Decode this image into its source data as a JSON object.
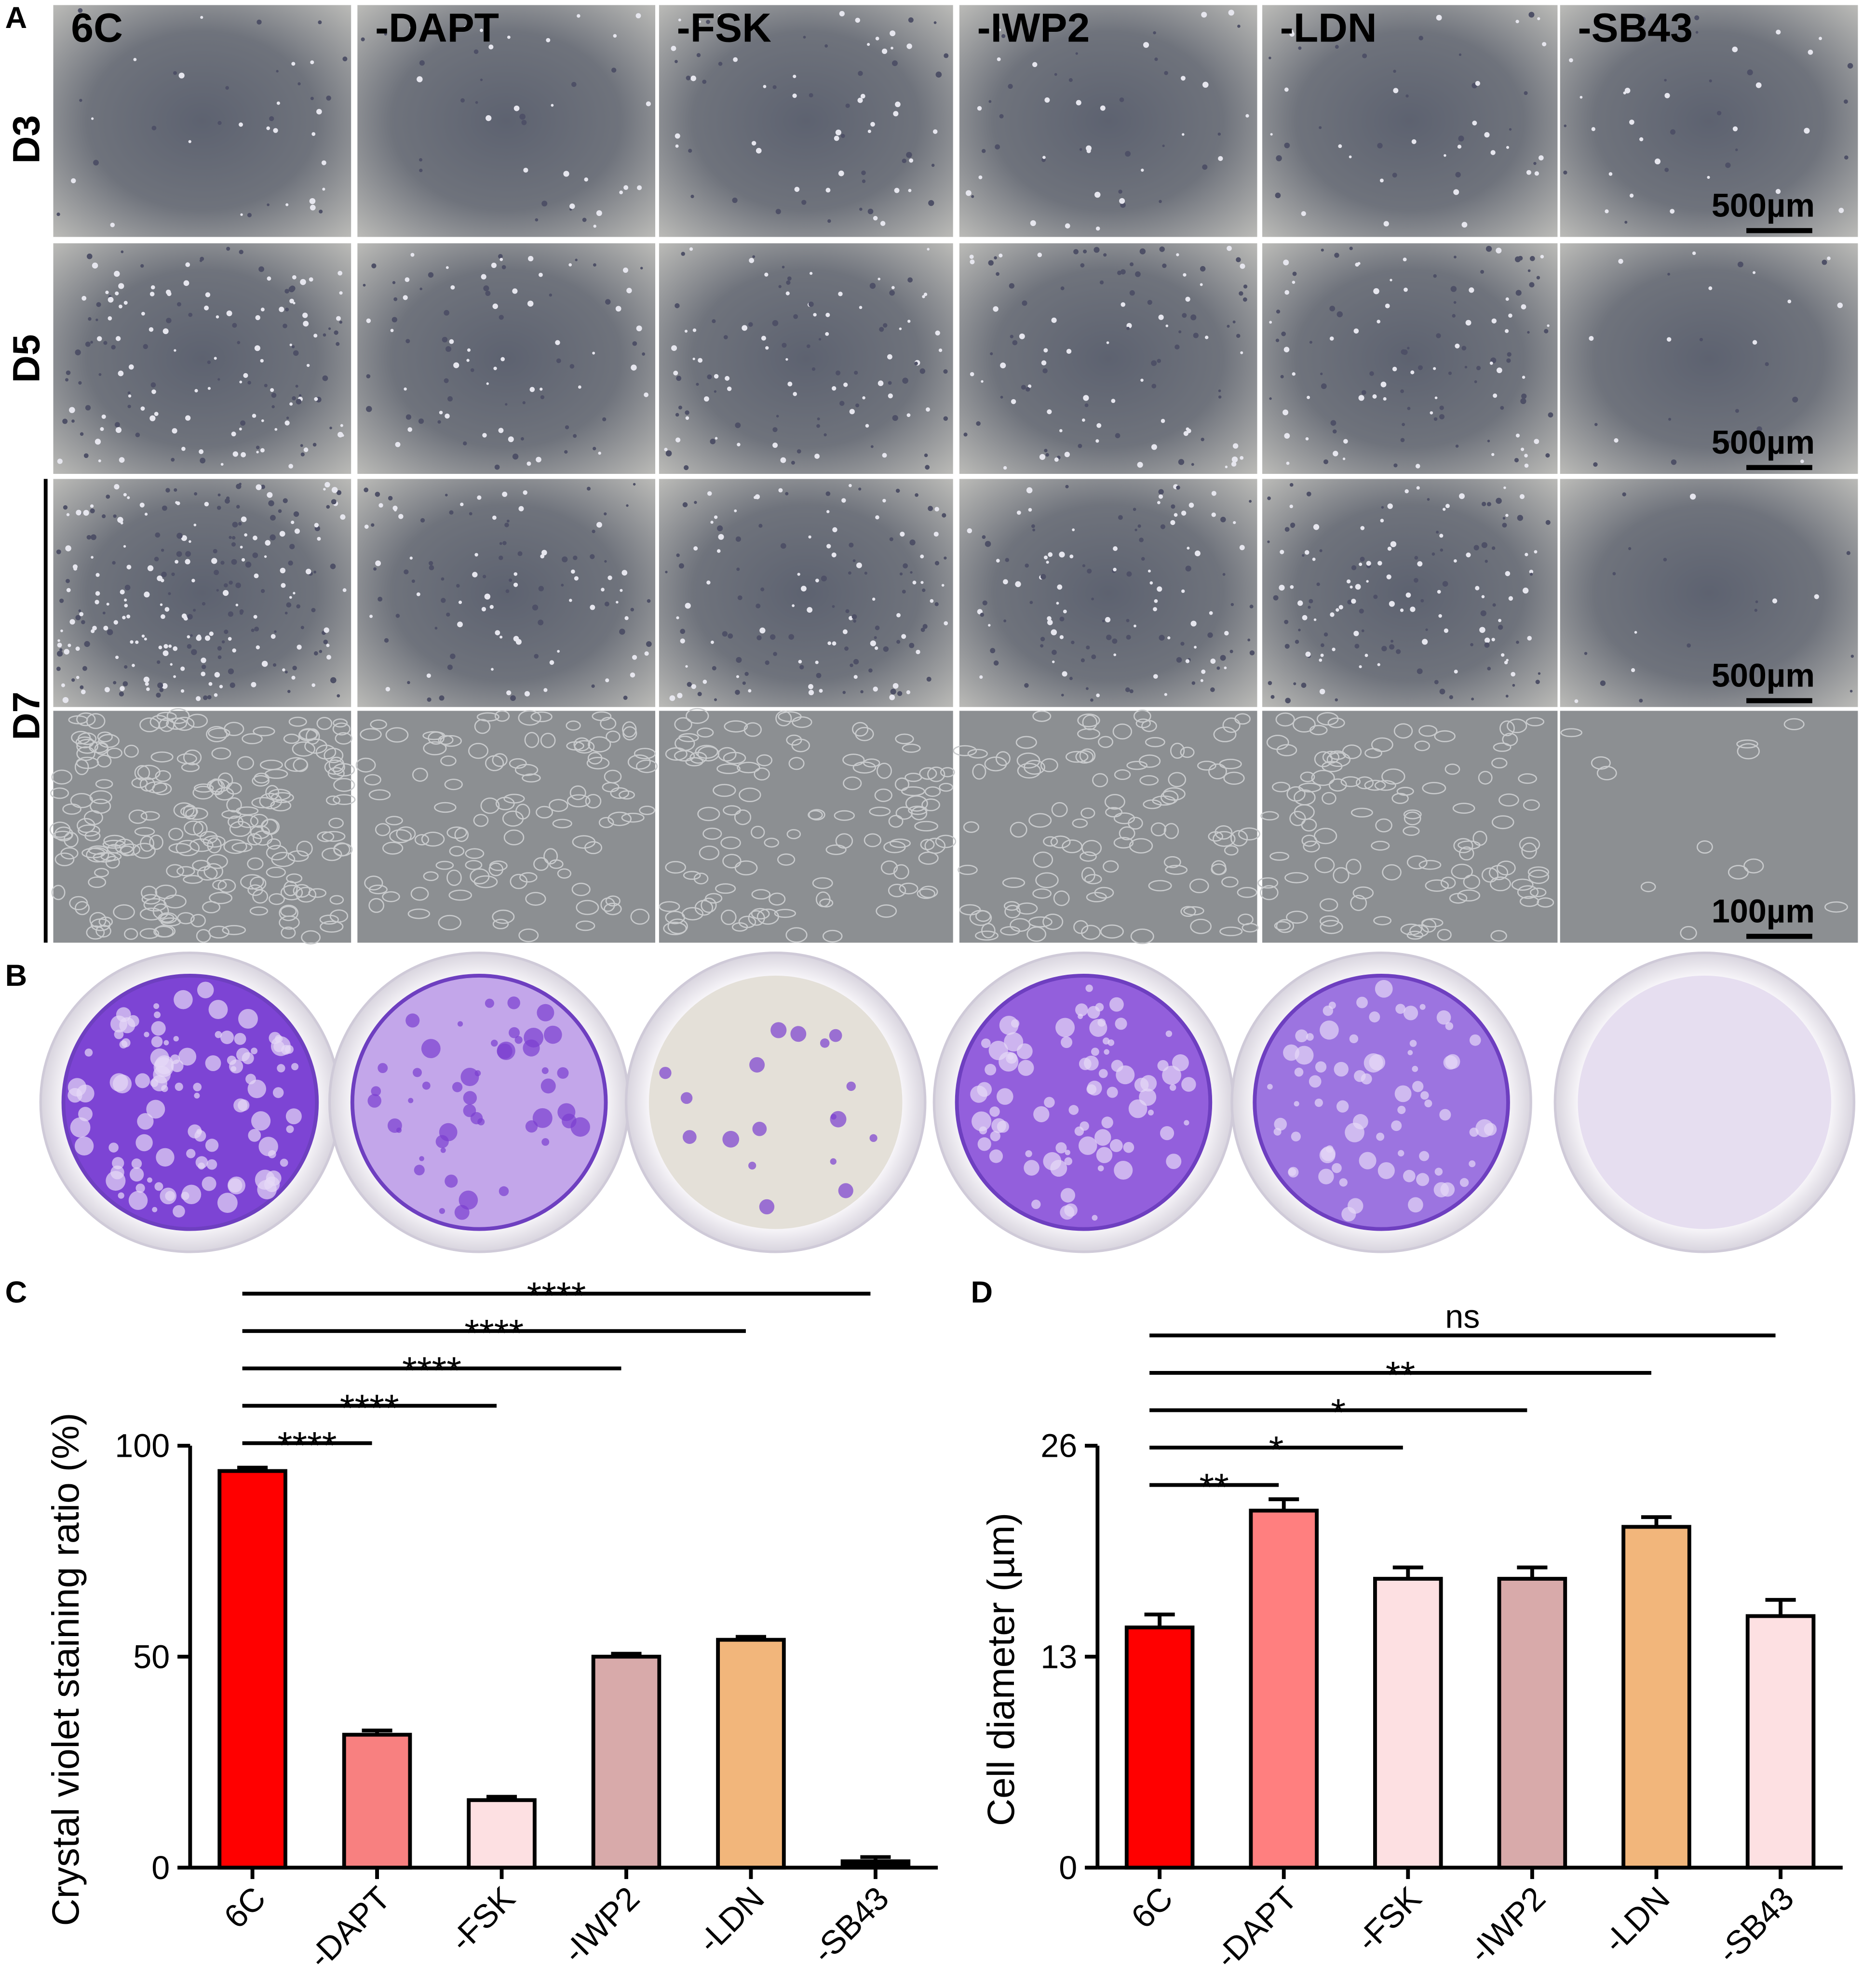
{
  "figure": {
    "panel_labels": [
      "A",
      "B",
      "C",
      "D"
    ],
    "column_labels": [
      "6C",
      "-DAPT",
      "-FSK",
      "-IWP2",
      "-LDN",
      "-SB43"
    ],
    "row_labels": [
      "D3",
      "D5",
      "D7"
    ],
    "scale_bars": [
      "500µm",
      "500µm",
      "500µm",
      "100µm"
    ]
  },
  "chart_data": [
    {
      "type": "bar",
      "ylabel": "Crystal violet staining ratio (%)",
      "categories": [
        "6C",
        "-DAPT",
        "-FSK",
        "-IWP2",
        "-LDN",
        "-SB43"
      ],
      "values": [
        94,
        31.5,
        16,
        50,
        54,
        1.5
      ],
      "errors": [
        0.8,
        1,
        0.8,
        0.7,
        0.7,
        1
      ],
      "colors": [
        "#ff0000",
        "#f88080",
        "#fde0e2",
        "#d8aaaa",
        "#f2b67b",
        "#000000"
      ],
      "ylim": [
        0,
        100
      ],
      "yticks": [
        0,
        50,
        100
      ],
      "comparisons": [
        {
          "label": "****",
          "between": [
            0,
            1
          ]
        },
        {
          "label": "****",
          "between": [
            0,
            2
          ]
        },
        {
          "label": "****",
          "between": [
            0,
            3
          ]
        },
        {
          "label": "****",
          "between": [
            0,
            4
          ]
        },
        {
          "label": "****",
          "between": [
            0,
            5
          ]
        }
      ]
    },
    {
      "type": "bar",
      "ylabel": "Cell diameter (µm)",
      "categories": [
        "6C",
        "-DAPT",
        "-FSK",
        "-IWP2",
        "-LDN",
        "-SB43"
      ],
      "values": [
        14.8,
        22,
        17.8,
        17.8,
        21,
        15.5
      ],
      "errors": [
        0.8,
        0.7,
        0.7,
        0.7,
        0.6,
        1
      ],
      "colors": [
        "#ff0000",
        "#ff7f7f",
        "#fde0e2",
        "#d8aaaa",
        "#f2b67b",
        "#fde0e2"
      ],
      "ylim": [
        0,
        26
      ],
      "yticks": [
        0,
        13,
        26
      ],
      "comparisons": [
        {
          "label": "**",
          "between": [
            0,
            1
          ]
        },
        {
          "label": "*",
          "between": [
            0,
            2
          ]
        },
        {
          "label": "*",
          "between": [
            0,
            3
          ]
        },
        {
          "label": "**",
          "between": [
            0,
            4
          ]
        },
        {
          "label": "ns",
          "between": [
            0,
            5
          ]
        }
      ]
    }
  ]
}
